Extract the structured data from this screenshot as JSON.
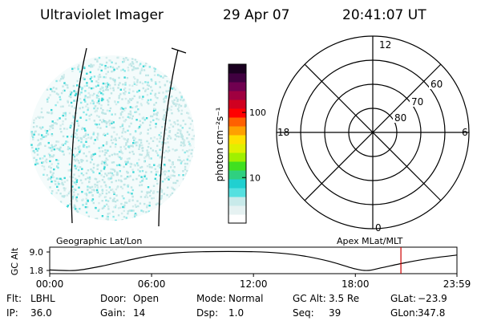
{
  "header": {
    "instrument": "Ultraviolet Imager",
    "date": "29 Apr 07",
    "time": "20:41:07 UT"
  },
  "colorbar": {
    "label": "photon cm⁻²s⁻¹",
    "ticks": [
      "100",
      "10"
    ],
    "tick_values": [
      100,
      10
    ],
    "scale": "log",
    "range": [
      2,
      550
    ],
    "colors": [
      "#ffffff",
      "#e6f2f2",
      "#c8eaea",
      "#55e0e0",
      "#20d0d0",
      "#2fd080",
      "#40e020",
      "#a0f000",
      "#e0f000",
      "#ffe000",
      "#ffa000",
      "#ff6000",
      "#ff0000",
      "#d00020",
      "#a00040",
      "#700050",
      "#400040",
      "#1a0020"
    ]
  },
  "image_panel": {
    "description_hidden": false,
    "dot_colors": [
      "#d2ecec",
      "#bfe6e6",
      "#8de8e8",
      "#38d6d6"
    ]
  },
  "polar_plot": {
    "mlt_labels": {
      "top": "12",
      "right": "6",
      "bottom": "0",
      "left": "18"
    },
    "lat_labels": [
      "60",
      "70",
      "80"
    ]
  },
  "orbit_plot": {
    "left_label": "Geographic Lat/Lon",
    "right_label": "Apex MLat/MLT",
    "y_axis_label": "GC Alt",
    "y_ticks": [
      "9.0",
      "1.8"
    ],
    "x_ticks": [
      "00:00",
      "06:00",
      "12:00",
      "18:00",
      "23:59"
    ],
    "marker_time": "20:41",
    "marker_color": "#cc0000"
  },
  "chart_data": [
    {
      "type": "line",
      "title": "",
      "xlabel": "",
      "ylabel": "GC Alt",
      "x": [
        "00:00",
        "01:30",
        "03:00",
        "04:30",
        "06:00",
        "07:30",
        "09:00",
        "10:30",
        "12:00",
        "13:30",
        "15:00",
        "16:30",
        "18:00",
        "18:45",
        "19:30",
        "21:00",
        "22:30",
        "23:59"
      ],
      "series": [
        {
          "values": [
            2.0,
            1.8,
            3.4,
            5.6,
            7.6,
            8.7,
            9.1,
            9.2,
            9.1,
            8.6,
            7.4,
            5.3,
            2.4,
            1.8,
            2.8,
            4.9,
            6.6,
            7.8
          ]
        }
      ],
      "ylim": [
        1.8,
        9.0
      ],
      "xlim": [
        "00:00",
        "23:59"
      ],
      "grid": false
    }
  ],
  "status": {
    "row1": [
      {
        "label": "Flt:",
        "value": "LBHL"
      },
      {
        "label": "Door:",
        "value": "Open"
      },
      {
        "label": "Mode:",
        "value": "Normal"
      },
      {
        "label": "GC Alt:",
        "value": "3.5 Re"
      },
      {
        "label": "GLat:",
        "value": "−23.9"
      }
    ],
    "row2": [
      {
        "label": "IP:",
        "value": "36.0"
      },
      {
        "label": "Gain:",
        "value": "14"
      },
      {
        "label": "Dsp:",
        "value": "1.0"
      },
      {
        "label": "Seq:",
        "value": "39"
      },
      {
        "label": "GLon:",
        "value": "347.8"
      }
    ]
  }
}
